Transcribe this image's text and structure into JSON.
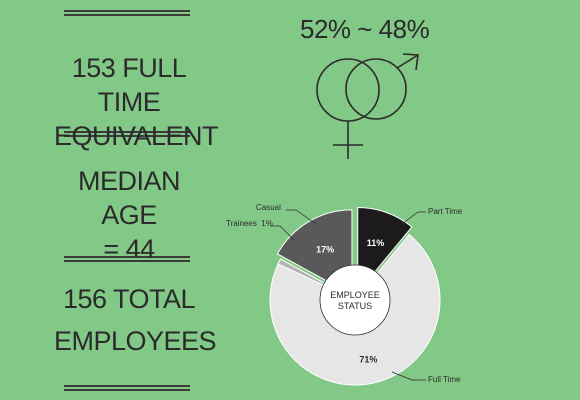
{
  "stats": {
    "fte_line1": "153 FULL TIME",
    "fte_line2": "EQUIVALENT",
    "age_line1": "MEDIAN AGE",
    "age_line2": "= 44",
    "total_line1": "156 TOTAL",
    "total_line2": "EMPLOYEES"
  },
  "gender": {
    "ratio_text": "52% ~ 48%",
    "icon": "female-male-symbols-icon"
  },
  "colors": {
    "background": "#82c887",
    "part_time": "#1c1a1a",
    "full_time": "#e6e6e6",
    "trainees": "#b3b3b3",
    "casual": "#595959"
  },
  "chart_data": {
    "type": "pie",
    "title": "EMPLOYEE STATUS",
    "center_label_lines": [
      "EMPLOYEE",
      "STATUS"
    ],
    "slices": [
      {
        "label": "Part Time",
        "value": 11,
        "value_label": "11%",
        "color": "#1c1a1a",
        "pct_color": "#ffffff"
      },
      {
        "label": "Full Time",
        "value": 71,
        "value_label": "71%",
        "color": "#e6e6e6",
        "pct_color": "#2b2b2b"
      },
      {
        "label": "Trainees  1%",
        "value": 1,
        "value_label": "",
        "color": "#b3b3b3",
        "pct_color": "#2b2b2b"
      },
      {
        "label": "Casual",
        "value": 17,
        "value_label": "17%",
        "color": "#595959",
        "pct_color": "#ffffff"
      }
    ]
  }
}
